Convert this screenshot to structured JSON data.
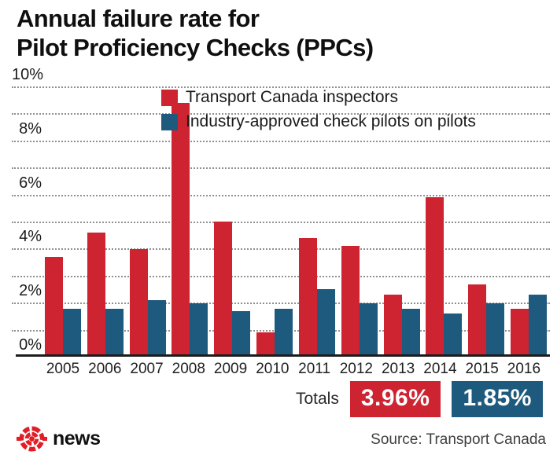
{
  "title": {
    "line1": "Annual failure rate for",
    "line2": "Pilot Proficiency Checks (PPCs)"
  },
  "chart_data": {
    "type": "bar",
    "title": "Annual failure rate for Pilot Proficiency Checks (PPCs)",
    "categories": [
      "2005",
      "2006",
      "2007",
      "2008",
      "2009",
      "2010",
      "2011",
      "2012",
      "2013",
      "2014",
      "2015",
      "2016"
    ],
    "series": [
      {
        "name": "Transport Canada inspectors",
        "color": "#ce2331",
        "values": [
          3.6,
          4.5,
          3.9,
          9.3,
          4.9,
          0.8,
          4.3,
          4.0,
          2.2,
          5.8,
          2.6,
          1.7
        ]
      },
      {
        "name": "Industry-approved check pilots on pilots",
        "color": "#1e5a7d",
        "values": [
          1.7,
          1.7,
          2.0,
          1.9,
          1.6,
          1.7,
          2.4,
          1.9,
          1.7,
          1.5,
          1.9,
          2.2
        ]
      }
    ],
    "xlabel": "",
    "ylabel": "",
    "ylim": [
      0,
      10
    ],
    "grid_step": 1,
    "grid_on": true,
    "legend_position": "top-center",
    "yticks": [
      {
        "value": 0,
        "label": "0%"
      },
      {
        "value": 2,
        "label": "2%"
      },
      {
        "value": 4,
        "label": "4%"
      },
      {
        "value": 6,
        "label": "6%"
      },
      {
        "value": 8,
        "label": "8%"
      },
      {
        "value": 10,
        "label": "10%"
      }
    ]
  },
  "totals": {
    "label": "Totals",
    "badges": [
      {
        "value": "3.96%",
        "color": "#ce2331"
      },
      {
        "value": "1.85%",
        "color": "#1e5a7d"
      }
    ]
  },
  "footer": {
    "brand_word": "news",
    "logo_color": "#e11d26",
    "source": "Source: Transport Canada"
  }
}
